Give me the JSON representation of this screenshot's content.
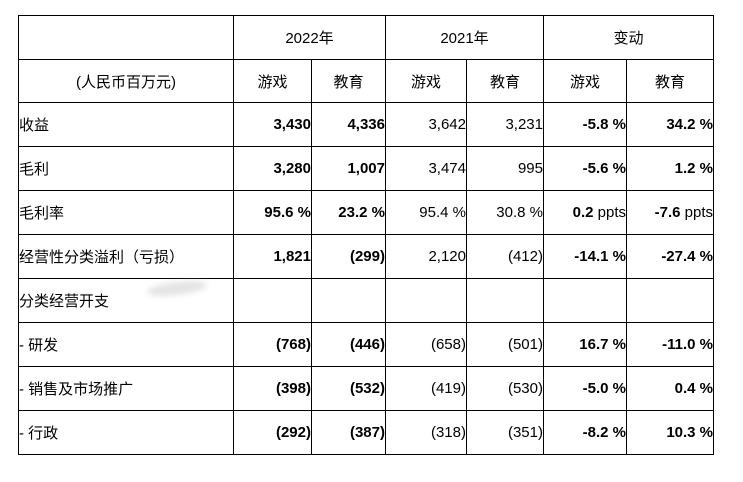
{
  "chart_data": {
    "type": "table",
    "unit_label": "(人民币百万元)",
    "column_groups": [
      {
        "label": "2022年",
        "subcolumns": [
          "游戏",
          "教育"
        ]
      },
      {
        "label": "2021年",
        "subcolumns": [
          "游戏",
          "教育"
        ]
      },
      {
        "label": "变动",
        "subcolumns": [
          "游戏",
          "教育"
        ]
      }
    ],
    "rows": [
      {
        "label": "收益",
        "values": [
          "3,430",
          "4,336",
          "3,642",
          "3,231",
          "-5.8 %",
          "34.2 %"
        ]
      },
      {
        "label": "毛利",
        "values": [
          "3,280",
          "1,007",
          "3,474",
          "995",
          "-5.6 %",
          "1.2 %"
        ]
      },
      {
        "label": "毛利率",
        "values": [
          "95.6 %",
          "23.2 %",
          "95.4 %",
          "30.8 %",
          "0.2 ppts",
          "-7.6 ppts"
        ]
      },
      {
        "label": "经营性分类溢利（亏损）",
        "values": [
          "1,821",
          "(299)",
          "2,120",
          "(412)",
          "-14.1 %",
          "-27.4 %"
        ]
      },
      {
        "label": "分类经营开支",
        "values": [
          "",
          "",
          "",
          "",
          "",
          ""
        ]
      },
      {
        "label": "- 研发",
        "values": [
          "(768)",
          "(446)",
          "(658)",
          "(501)",
          "16.7 %",
          "-11.0 %"
        ]
      },
      {
        "label": "- 销售及市场推广",
        "values": [
          "(398)",
          "(532)",
          "(419)",
          "(530)",
          "-5.0 %",
          "0.4 %"
        ]
      },
      {
        "label": "- 行政",
        "values": [
          "(292)",
          "(387)",
          "(318)",
          "(351)",
          "-8.2 %",
          "10.3 %"
        ]
      }
    ],
    "layout": {
      "legend": "none",
      "grid": "full-borders"
    },
    "colors": {
      "text": "#000000",
      "border": "#000000",
      "background": "#ffffff"
    }
  }
}
